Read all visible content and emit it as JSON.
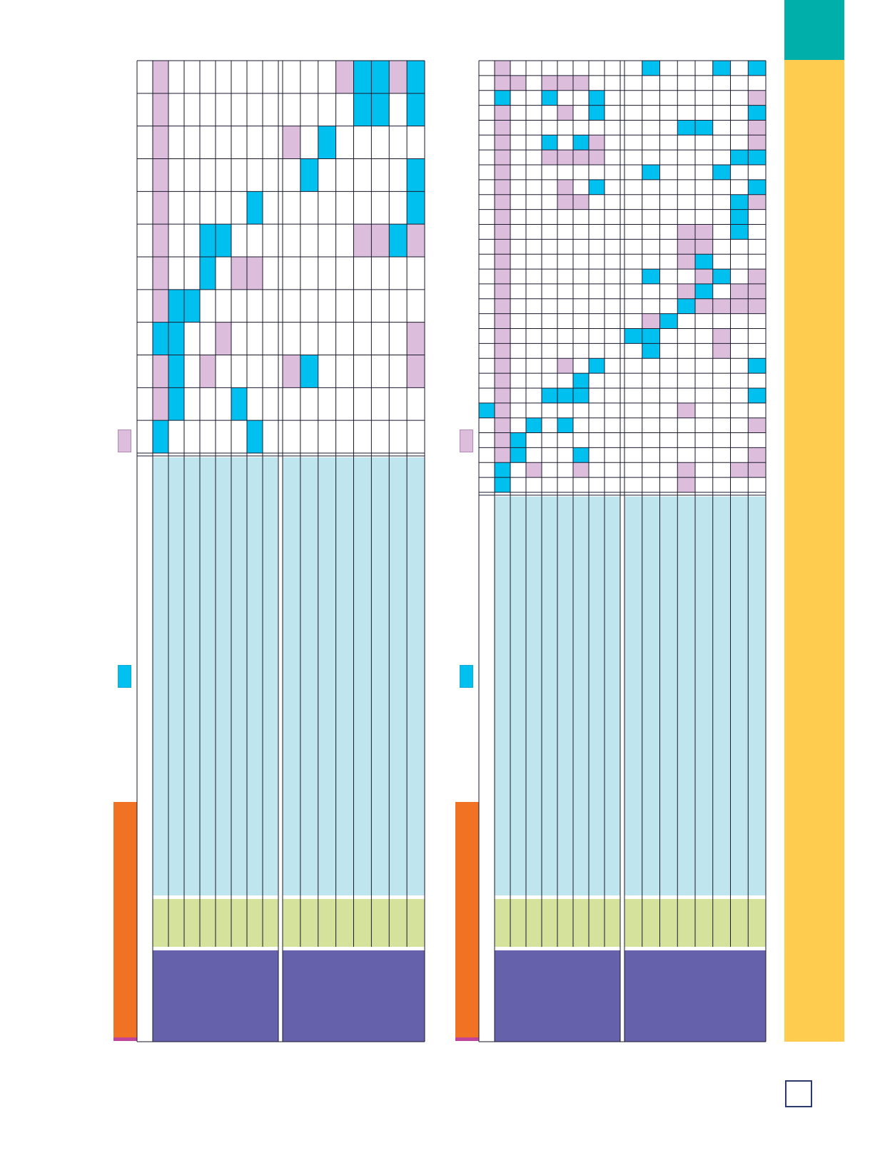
{
  "colors": {
    "recommended": "#dcbddb",
    "assessment": "#00c0f0",
    "pale_blue": "#bfe5ef",
    "green": "#d5e29c",
    "purple": "#6661ab",
    "orange": "#f07222",
    "magenta": "#c0449a",
    "teal": "#00aeaa",
    "yellow": "#fecc4f",
    "line": "#1a1a2e"
  },
  "page_number": "",
  "tables": [
    {
      "name": "left-table",
      "groups": 2,
      "columns_per_group": 8,
      "rows": [
        {
          "r": [],
          "a": [
            13,
            14,
            16
          ],
          "rr": [
            12,
            15,
            16
          ]
        },
        {
          "r": [],
          "a": [
            13,
            14,
            16
          ],
          "rr": [
            17
          ]
        },
        {
          "r": [],
          "a": [
            11
          ],
          "rr": [
            9
          ]
        },
        {
          "r": [],
          "a": [
            10,
            16,
            17
          ],
          "rr": []
        },
        {
          "r": [],
          "a": [
            7,
            17
          ],
          "rr": [
            16
          ]
        },
        {
          "r": [
            3
          ],
          "a": [
            4,
            5,
            15
          ],
          "rr": [
            13,
            14,
            16,
            17
          ]
        },
        {
          "r": [
            5,
            6
          ],
          "a": [
            4
          ],
          "rr": []
        },
        {
          "r": [
            1
          ],
          "a": [
            2,
            3
          ],
          "rr": []
        },
        {
          "r": [
            4
          ],
          "a": [
            1,
            2
          ],
          "rr": [
            16
          ]
        },
        {
          "r": [
            3
          ],
          "a": [
            2,
            10
          ],
          "rr": [
            9,
            17
          ]
        },
        {
          "r": [],
          "a": [
            2,
            6
          ],
          "rr": []
        },
        {
          "r": [],
          "a": [
            1,
            7
          ],
          "rr": []
        }
      ]
    },
    {
      "name": "right-table",
      "groups": 2,
      "columns_per_group": 8,
      "rows": [
        {
          "r": [
            9
          ],
          "a": [
            10,
            14,
            16,
            17
          ],
          "rr": []
        },
        {
          "r": [
            1,
            3,
            4,
            5
          ],
          "a": [],
          "rr": []
        },
        {
          "r": [],
          "a": [
            1,
            4,
            7
          ],
          "rr": [
            16
          ]
        },
        {
          "r": [
            4,
            6
          ],
          "a": [
            7,
            17
          ],
          "rr": [
            16
          ]
        },
        {
          "r": [],
          "a": [
            12,
            13
          ],
          "rr": [
            16,
            17
          ]
        },
        {
          "r": [],
          "a": [
            4,
            6
          ],
          "rr": [
            7,
            16,
            17
          ]
        },
        {
          "r": [
            3,
            4,
            5,
            6
          ],
          "a": [
            15,
            17
          ],
          "rr": [
            16
          ]
        },
        {
          "r": [],
          "a": [
            10,
            14
          ],
          "rr": []
        },
        {
          "r": [
            4
          ],
          "a": [
            7,
            17
          ],
          "rr": [
            16
          ]
        },
        {
          "r": [
            4,
            5
          ],
          "a": [
            15
          ],
          "rr": [
            16,
            17
          ]
        },
        {
          "r": [],
          "a": [
            15
          ],
          "rr": []
        },
        {
          "r": [],
          "a": [
            15
          ],
          "rr": [
            12,
            13
          ]
        },
        {
          "r": [],
          "a": [],
          "rr": [
            12,
            13
          ]
        },
        {
          "r": [],
          "a": [
            13
          ],
          "rr": [
            12
          ]
        },
        {
          "r": [],
          "a": [
            10,
            14
          ],
          "rr": [
            13,
            16,
            17
          ]
        },
        {
          "r": [],
          "a": [
            13
          ],
          "rr": [
            12,
            15,
            16,
            17
          ]
        },
        {
          "r": [],
          "a": [
            12
          ],
          "rr": [
            13,
            14,
            15,
            16,
            17
          ]
        },
        {
          "r": [],
          "a": [
            11
          ],
          "rr": [
            10
          ]
        },
        {
          "r": [],
          "a": [
            9,
            10
          ],
          "rr": [
            14
          ]
        },
        {
          "r": [],
          "a": [
            10
          ],
          "rr": [
            14
          ]
        },
        {
          "r": [
            4
          ],
          "a": [
            7,
            17
          ],
          "rr": []
        },
        {
          "r": [],
          "a": [
            6
          ],
          "rr": []
        },
        {
          "r": [],
          "a": [
            4,
            5,
            6,
            16,
            17
          ],
          "rr": []
        },
        {
          "r": [],
          "a": [
            0
          ],
          "rr": [
            12,
            1
          ]
        },
        {
          "r": [],
          "a": [
            3,
            5
          ],
          "rr": [
            16,
            17
          ]
        },
        {
          "r": [],
          "a": [
            2
          ],
          "rr": [
            1
          ]
        },
        {
          "r": [],
          "a": [
            2,
            6
          ],
          "rr": [
            16,
            17
          ]
        },
        {
          "r": [
            2
          ],
          "a": [
            1
          ],
          "rr": [
            6,
            12,
            15,
            16,
            17
          ]
        },
        {
          "r": [],
          "a": [
            1
          ],
          "rr": [
            12
          ]
        }
      ]
    }
  ]
}
